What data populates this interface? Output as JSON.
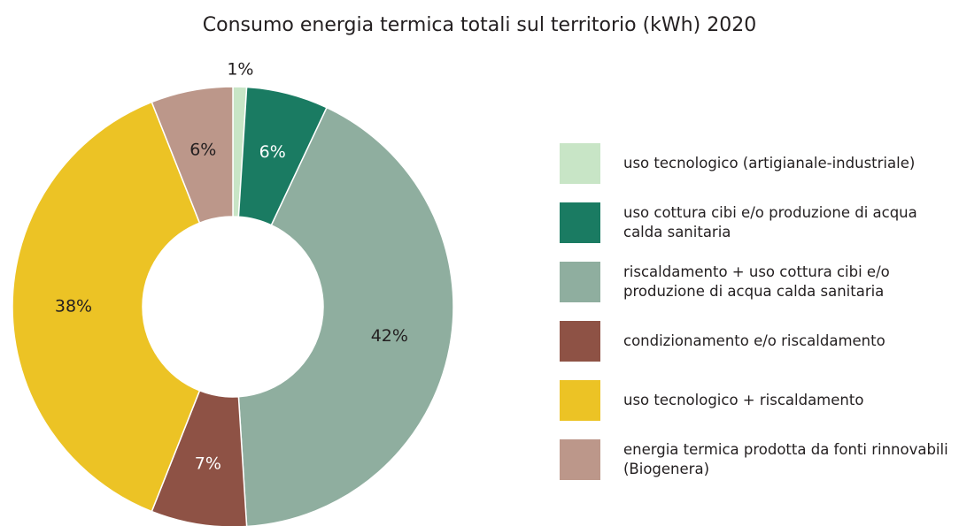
{
  "chart_data": {
    "type": "donut",
    "title": "Consumo energia termica totali sul territorio (kWh) 2020",
    "categories": [
      "uso tecnologico (artigianale-industriale)",
      "uso cottura cibi e/o produzione di acqua calda sanitaria",
      "riscaldamento + uso cottura cibi e/o produzione di acqua calda sanitaria",
      "condizionamento e/o riscaldamento",
      "uso tecnologico + riscaldamento",
      "energia termica prodotta da fonti rinnovabili (Biogenera)"
    ],
    "values": [
      1,
      6,
      42,
      7,
      38,
      6
    ],
    "value_labels": [
      "1%",
      "6%",
      "42%",
      "7%",
      "38%",
      "6%"
    ],
    "colors": [
      "#c8e5c6",
      "#1a7b62",
      "#8fae9f",
      "#8e5245",
      "#ecc325",
      "#bc978a"
    ],
    "legend": "right"
  }
}
